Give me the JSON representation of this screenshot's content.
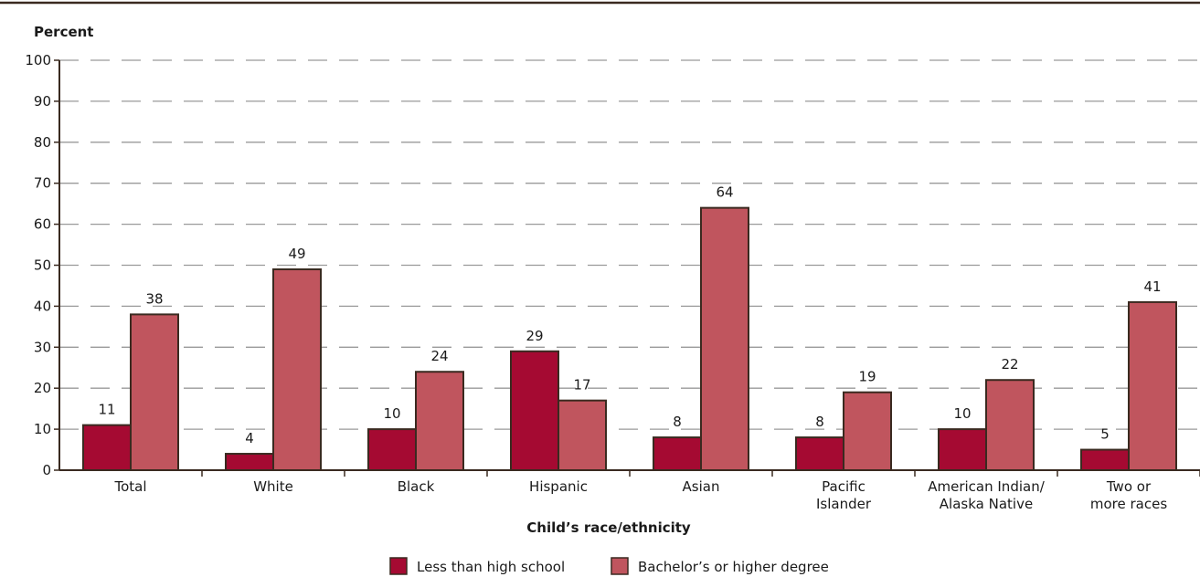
{
  "chart_data": {
    "type": "bar",
    "ylabel": "Percent",
    "xlabel": "Child’s race/ethnicity",
    "ylim": [
      0,
      100
    ],
    "yticks": [
      0,
      10,
      20,
      30,
      40,
      50,
      60,
      70,
      80,
      90,
      100
    ],
    "grid": true,
    "legend_position": "bottom",
    "categories": [
      [
        "Total"
      ],
      [
        "White"
      ],
      [
        "Black"
      ],
      [
        "Hispanic"
      ],
      [
        "Asian"
      ],
      [
        "Pacific",
        "Islander"
      ],
      [
        "American Indian/",
        "Alaska Native"
      ],
      [
        "Two or",
        "more races"
      ]
    ],
    "series": [
      {
        "name": "Less than high school",
        "color": "#a50a32",
        "values": [
          11,
          4,
          10,
          29,
          8,
          8,
          10,
          5
        ]
      },
      {
        "name": "Bachelor’s or higher degree",
        "color": "#c0555e",
        "values": [
          38,
          49,
          24,
          17,
          64,
          19,
          22,
          41
        ]
      }
    ]
  }
}
